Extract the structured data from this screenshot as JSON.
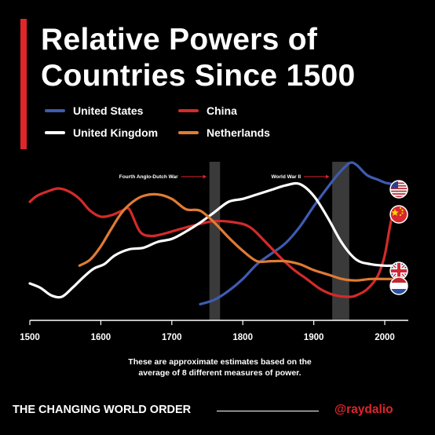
{
  "title": {
    "line1": "Relative Powers of",
    "line2": "Countries Since 1500"
  },
  "colors": {
    "accent": "#e0252b",
    "background": "#000000"
  },
  "chart_data": {
    "type": "line",
    "xlabel": "",
    "ylabel": "",
    "xlim": [
      1500,
      2020
    ],
    "ylim": [
      0,
      1
    ],
    "x_ticks": [
      1500,
      1600,
      1700,
      1800,
      1900,
      2000
    ],
    "grid": false,
    "legend": "top-left",
    "series": [
      {
        "name": "United States",
        "color": "#3f5bb0",
        "points": [
          [
            1740,
            0.04
          ],
          [
            1760,
            0.07
          ],
          [
            1780,
            0.13
          ],
          [
            1800,
            0.21
          ],
          [
            1820,
            0.31
          ],
          [
            1840,
            0.38
          ],
          [
            1860,
            0.45
          ],
          [
            1880,
            0.56
          ],
          [
            1900,
            0.7
          ],
          [
            1920,
            0.83
          ],
          [
            1935,
            0.92
          ],
          [
            1950,
            0.99
          ],
          [
            1960,
            0.98
          ],
          [
            1975,
            0.91
          ],
          [
            1990,
            0.88
          ],
          [
            2000,
            0.86
          ],
          [
            2010,
            0.85
          ]
        ]
      },
      {
        "name": "China",
        "color": "#d42a2a",
        "points": [
          [
            1500,
            0.73
          ],
          [
            1510,
            0.77
          ],
          [
            1525,
            0.8
          ],
          [
            1540,
            0.82
          ],
          [
            1555,
            0.8
          ],
          [
            1570,
            0.75
          ],
          [
            1585,
            0.67
          ],
          [
            1600,
            0.63
          ],
          [
            1615,
            0.64
          ],
          [
            1630,
            0.67
          ],
          [
            1640,
            0.68
          ],
          [
            1655,
            0.53
          ],
          [
            1670,
            0.5
          ],
          [
            1685,
            0.51
          ],
          [
            1700,
            0.53
          ],
          [
            1730,
            0.57
          ],
          [
            1760,
            0.6
          ],
          [
            1790,
            0.59
          ],
          [
            1810,
            0.56
          ],
          [
            1830,
            0.47
          ],
          [
            1850,
            0.37
          ],
          [
            1870,
            0.28
          ],
          [
            1890,
            0.21
          ],
          [
            1910,
            0.14
          ],
          [
            1930,
            0.1
          ],
          [
            1950,
            0.09
          ],
          [
            1960,
            0.1
          ],
          [
            1975,
            0.14
          ],
          [
            1990,
            0.23
          ],
          [
            2000,
            0.37
          ],
          [
            2010,
            0.62
          ],
          [
            2020,
            0.68
          ]
        ]
      },
      {
        "name": "United Kingdom",
        "color": "#ffffff",
        "points": [
          [
            1500,
            0.18
          ],
          [
            1515,
            0.15
          ],
          [
            1530,
            0.1
          ],
          [
            1545,
            0.09
          ],
          [
            1560,
            0.15
          ],
          [
            1575,
            0.22
          ],
          [
            1590,
            0.28
          ],
          [
            1605,
            0.31
          ],
          [
            1620,
            0.37
          ],
          [
            1640,
            0.41
          ],
          [
            1660,
            0.42
          ],
          [
            1680,
            0.46
          ],
          [
            1700,
            0.48
          ],
          [
            1720,
            0.53
          ],
          [
            1740,
            0.59
          ],
          [
            1760,
            0.66
          ],
          [
            1780,
            0.73
          ],
          [
            1800,
            0.75
          ],
          [
            1820,
            0.78
          ],
          [
            1840,
            0.81
          ],
          [
            1860,
            0.84
          ],
          [
            1880,
            0.85
          ],
          [
            1900,
            0.77
          ],
          [
            1920,
            0.62
          ],
          [
            1940,
            0.45
          ],
          [
            1960,
            0.34
          ],
          [
            1980,
            0.31
          ],
          [
            2000,
            0.3
          ],
          [
            2010,
            0.3
          ],
          [
            2020,
            0.3
          ]
        ]
      },
      {
        "name": "Netherlands",
        "color": "#e07b35",
        "points": [
          [
            1570,
            0.3
          ],
          [
            1585,
            0.34
          ],
          [
            1600,
            0.43
          ],
          [
            1615,
            0.55
          ],
          [
            1630,
            0.66
          ],
          [
            1645,
            0.73
          ],
          [
            1660,
            0.77
          ],
          [
            1680,
            0.78
          ],
          [
            1700,
            0.75
          ],
          [
            1720,
            0.68
          ],
          [
            1740,
            0.67
          ],
          [
            1760,
            0.59
          ],
          [
            1780,
            0.49
          ],
          [
            1800,
            0.4
          ],
          [
            1820,
            0.33
          ],
          [
            1840,
            0.33
          ],
          [
            1860,
            0.33
          ],
          [
            1880,
            0.31
          ],
          [
            1900,
            0.27
          ],
          [
            1920,
            0.24
          ],
          [
            1940,
            0.21
          ],
          [
            1960,
            0.2
          ],
          [
            1980,
            0.21
          ],
          [
            2000,
            0.21
          ],
          [
            2010,
            0.21
          ]
        ]
      }
    ],
    "shaded_periods": [
      {
        "label": "Fourth Anglo-Dutch War",
        "x": [
          1753,
          1768
        ]
      },
      {
        "label": "World War II",
        "x": [
          1926,
          1950
        ]
      }
    ],
    "note": {
      "line1": "These are approximate estimates based on the",
      "line2": "average of 8 different measures of power."
    }
  },
  "flags": [
    {
      "name": "us-flag-icon",
      "series": "United States"
    },
    {
      "name": "china-flag-icon",
      "series": "China"
    },
    {
      "name": "uk-flag-icon",
      "series": "United Kingdom"
    },
    {
      "name": "netherlands-flag-icon",
      "series": "Netherlands"
    }
  ],
  "footer": {
    "left": "THE CHANGING WORLD ORDER",
    "right": "@raydalio"
  }
}
